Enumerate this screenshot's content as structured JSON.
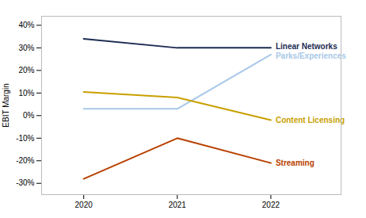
{
  "chart_data": {
    "type": "line",
    "x": [
      2020,
      2021,
      2022
    ],
    "xlim": [
      2019.55,
      2022.75
    ],
    "xticks": [
      2020,
      2021,
      2022
    ],
    "ylabel": "EBIT Margin",
    "ylim": [
      -35,
      44
    ],
    "yticks": [
      {
        "value": -30,
        "label": "-30%"
      },
      {
        "value": -20,
        "label": "-20%"
      },
      {
        "value": -10,
        "label": "-10%"
      },
      {
        "value": 0,
        "label": "0%"
      },
      {
        "value": 10,
        "label": "10%"
      },
      {
        "value": 20,
        "label": "20%"
      },
      {
        "value": 30,
        "label": "30%"
      },
      {
        "value": 40,
        "label": "40%"
      }
    ],
    "grid": false,
    "series": [
      {
        "name": "Linear Networks",
        "color": "#1c2c52",
        "values": [
          34,
          30,
          30
        ]
      },
      {
        "name": "Parks/Experiences",
        "color": "#a8c8e8",
        "values": [
          3,
          3,
          27
        ]
      },
      {
        "name": "Content Licensing",
        "color": "#c8a000",
        "values": [
          10.5,
          8,
          -2
        ]
      },
      {
        "name": "Streaming",
        "color": "#b84000",
        "values": [
          -28,
          -10,
          -21
        ]
      }
    ]
  }
}
